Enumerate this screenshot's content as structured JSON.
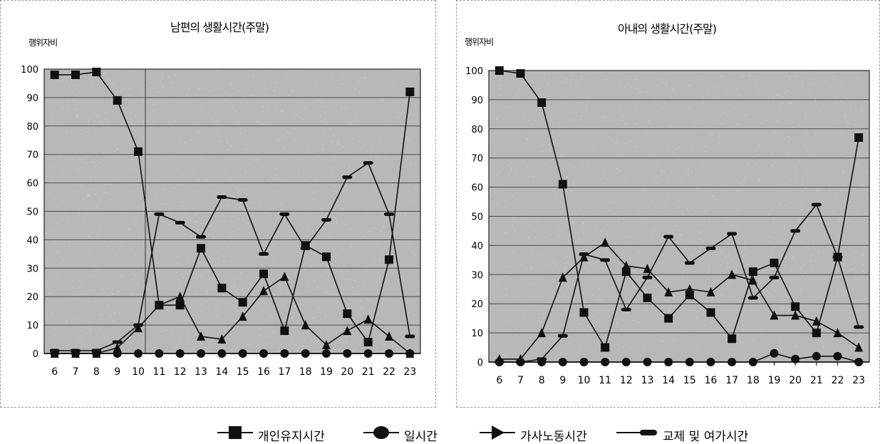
{
  "chart_data": [
    {
      "type": "line",
      "title": "남편의 생활시간(주말)",
      "ylabel": "행위자비",
      "ylim": [
        0,
        100
      ],
      "yticks": [
        0,
        10,
        20,
        30,
        40,
        50,
        60,
        70,
        80,
        90,
        100
      ],
      "categories": [
        "6",
        "7",
        "8",
        "9",
        "10",
        "11",
        "12",
        "13",
        "14",
        "15",
        "16",
        "17",
        "18",
        "19",
        "20",
        "21",
        "22",
        "23"
      ],
      "grid": true,
      "series": [
        {
          "name": "개인유지시간",
          "marker": "square",
          "values": [
            98,
            98,
            99,
            89,
            71,
            17,
            17,
            37,
            23,
            18,
            28,
            8,
            38,
            34,
            14,
            4,
            33,
            92
          ]
        },
        {
          "name": "일시간",
          "marker": "circle",
          "values": [
            0,
            0,
            0,
            0,
            0,
            0,
            0,
            0,
            0,
            0,
            0,
            0,
            0,
            0,
            0,
            0,
            0,
            0
          ]
        },
        {
          "name": "가사노동시간",
          "marker": "triangle",
          "values": [
            0,
            0,
            0,
            2,
            9,
            17,
            20,
            6,
            5,
            13,
            22,
            27,
            10,
            3,
            8,
            12,
            6,
            0
          ]
        },
        {
          "name": "교제 및 여가시간",
          "marker": "dash",
          "values": [
            1,
            1,
            1,
            4,
            10,
            49,
            46,
            41,
            55,
            54,
            35,
            49,
            37,
            47,
            62,
            67,
            49,
            6
          ]
        }
      ]
    },
    {
      "type": "line",
      "title": "아내의 생활시간(주말)",
      "ylabel": "행위자비",
      "ylim": [
        0,
        100
      ],
      "yticks": [
        0,
        10,
        20,
        30,
        40,
        50,
        60,
        70,
        80,
        90,
        100
      ],
      "categories": [
        "6",
        "7",
        "8",
        "9",
        "10",
        "11",
        "12",
        "13",
        "14",
        "15",
        "16",
        "17",
        "18",
        "19",
        "20",
        "21",
        "22",
        "23"
      ],
      "grid": true,
      "series": [
        {
          "name": "개인유지시간",
          "marker": "square",
          "values": [
            100,
            99,
            89,
            61,
            17,
            5,
            31,
            22,
            15,
            23,
            17,
            8,
            31,
            34,
            19,
            10,
            36,
            77
          ]
        },
        {
          "name": "일시간",
          "marker": "circle",
          "values": [
            0,
            0,
            0,
            0,
            0,
            0,
            0,
            0,
            0,
            0,
            0,
            0,
            0,
            3,
            1,
            2,
            2,
            0
          ]
        },
        {
          "name": "가사노동시간",
          "marker": "triangle",
          "values": [
            1,
            1,
            10,
            29,
            36,
            41,
            33,
            32,
            24,
            25,
            24,
            30,
            28,
            16,
            16,
            14,
            10,
            5
          ]
        },
        {
          "name": "교제 및 여가시간",
          "marker": "dash",
          "values": [
            0,
            0,
            1,
            9,
            37,
            35,
            18,
            29,
            43,
            34,
            39,
            44,
            22,
            29,
            45,
            54,
            36,
            12
          ]
        }
      ]
    }
  ],
  "legend": {
    "items": [
      "개인유지시간",
      "일시간",
      "가사노동시간",
      "교제 및 여가시간"
    ]
  },
  "colors": {
    "plot_bg": "#b8b8b8",
    "grid": "#4a4a4a",
    "line": "#111111"
  }
}
